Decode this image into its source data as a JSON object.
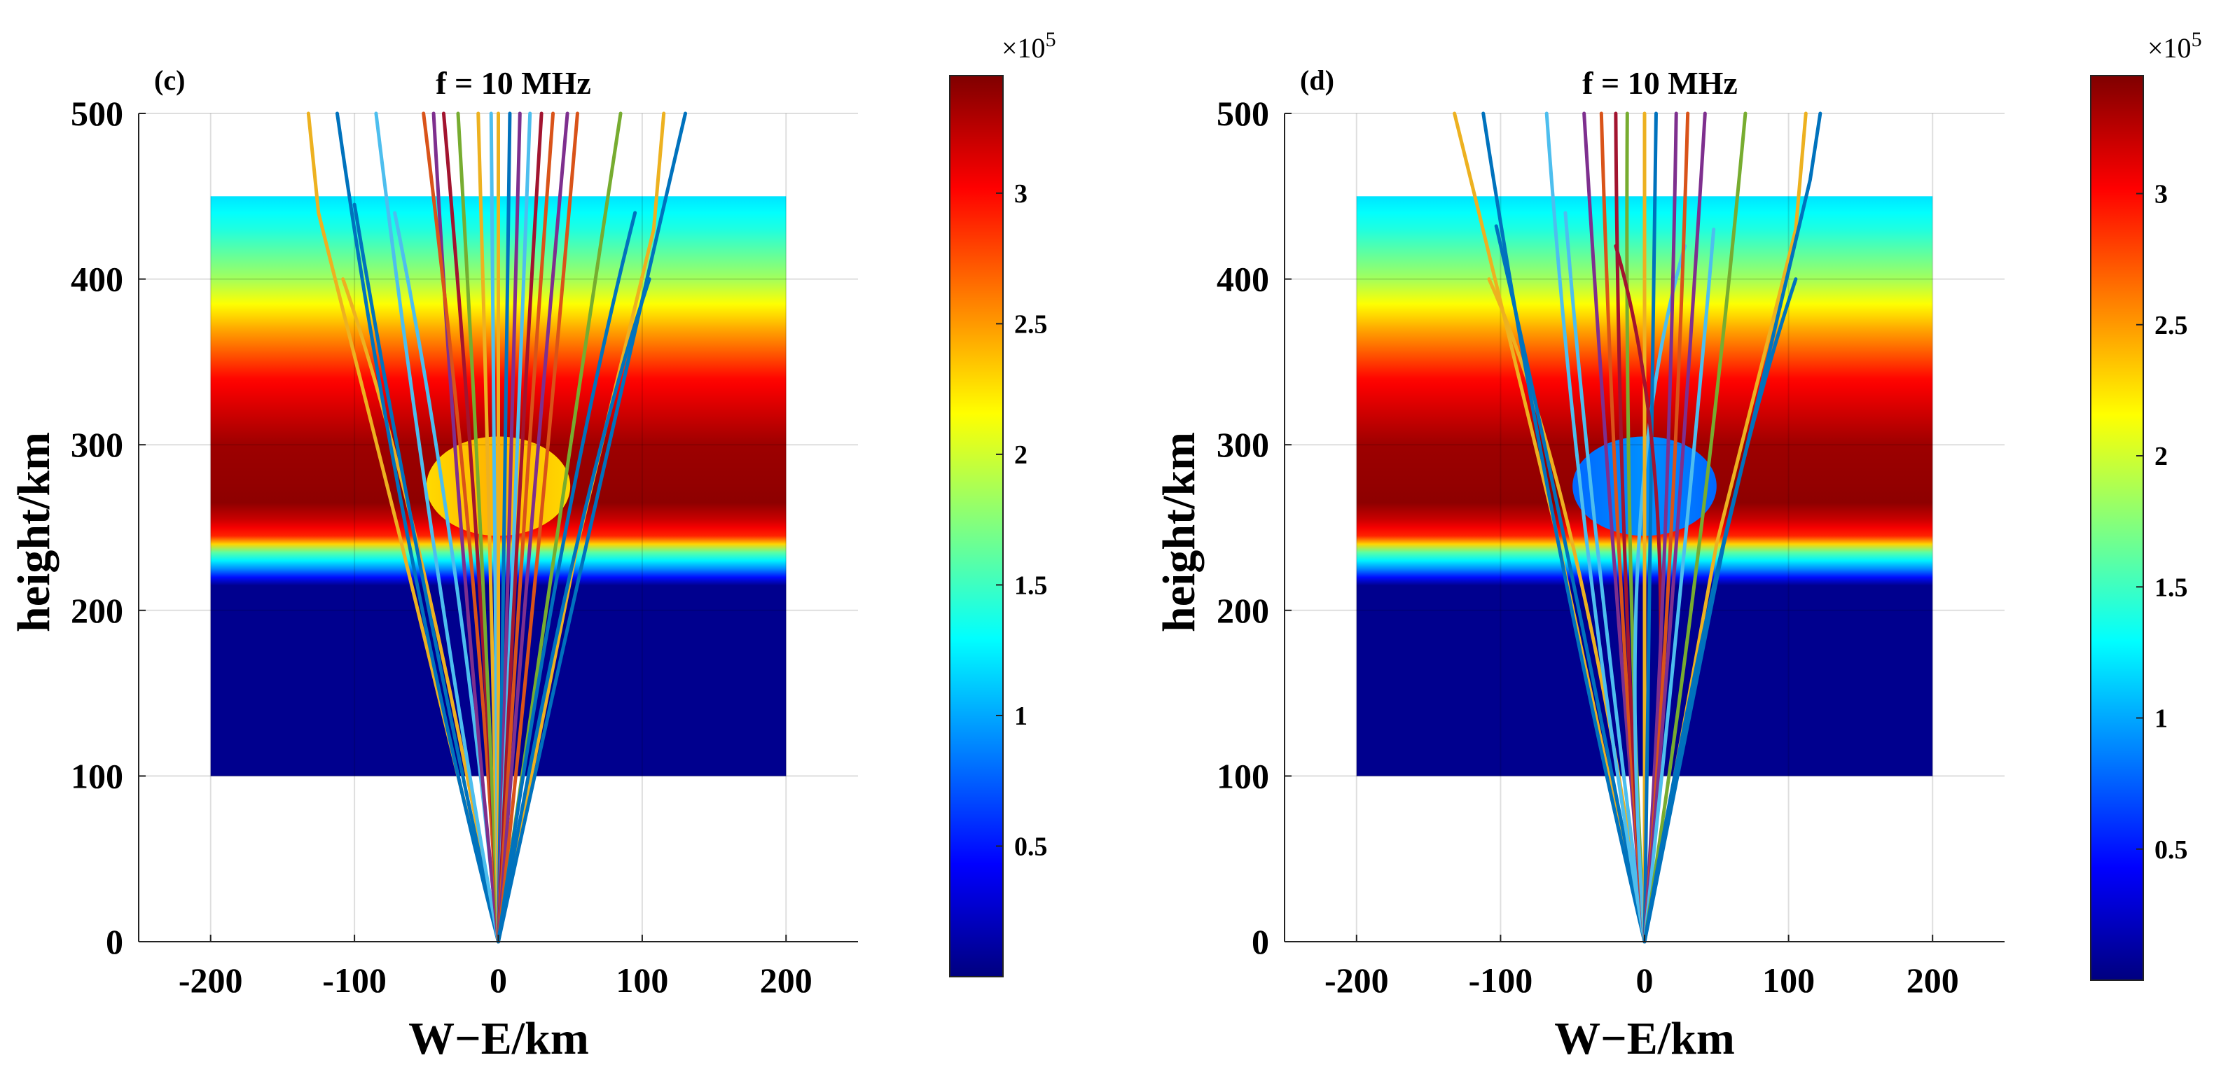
{
  "colormap": "jet",
  "chart_data": [
    {
      "type": "heatmap",
      "panel_label": "(c)",
      "title": "f = 10 MHz",
      "xlabel": "W−E/km",
      "ylabel": "height/km",
      "xlim": [
        -250,
        250
      ],
      "ylim": [
        0,
        500
      ],
      "xticks": [
        -200,
        -100,
        0,
        100,
        200
      ],
      "yticks": [
        0,
        100,
        200,
        300,
        400,
        500
      ],
      "xtick_labels": [
        "-200",
        "-100",
        "0",
        "100",
        "200"
      ],
      "ytick_labels": [
        "0",
        "100",
        "200",
        "300",
        "400",
        "500"
      ],
      "grid": true,
      "colorbar": {
        "clim": [
          0,
          345000
        ],
        "ticks": [
          50000,
          100000,
          150000,
          200000,
          250000,
          300000
        ],
        "tick_labels": [
          "0.5",
          "1",
          "1.5",
          "2",
          "2.5",
          "3"
        ],
        "exponent_label": "×10",
        "exponent_power": "5"
      },
      "density_field": {
        "x_range": [
          -200,
          200
        ],
        "height_range": [
          100,
          450
        ],
        "profile": [
          [
            100,
            5000
          ],
          [
            215,
            5000
          ],
          [
            225,
            90000
          ],
          [
            235,
            160000
          ],
          [
            240,
            230000
          ],
          [
            245,
            290000
          ],
          [
            255,
            320000
          ],
          [
            265,
            340000
          ],
          [
            300,
            335000
          ],
          [
            340,
            300000
          ],
          [
            370,
            245000
          ],
          [
            400,
            185000
          ],
          [
            430,
            140000
          ],
          [
            450,
            120000
          ]
        ]
      },
      "irregularity": {
        "center_x": 0,
        "center_height": 275,
        "semi_axis_x": 50,
        "semi_axis_height": 30,
        "density": 235000
      },
      "rays": [
        {
          "color": "#EDB120",
          "points": [
            [
              0,
              0
            ],
            [
              -55,
              235
            ],
            [
              -108,
              400
            ]
          ]
        },
        {
          "color": "#EDB120",
          "points": [
            [
              0,
              0
            ],
            [
              -70,
              250
            ],
            [
              -125,
              440
            ],
            [
              -132,
              500
            ]
          ]
        },
        {
          "color": "#0072BD",
          "points": [
            [
              0,
              0
            ],
            [
              -55,
              230
            ],
            [
              -100,
              445
            ]
          ]
        },
        {
          "color": "#0072BD",
          "points": [
            [
              0,
              0
            ],
            [
              -62,
              240
            ],
            [
              -112,
              500
            ]
          ]
        },
        {
          "color": "#4DBEEE",
          "points": [
            [
              0,
              0
            ],
            [
              -45,
              240
            ],
            [
              -85,
              500
            ]
          ]
        },
        {
          "color": "#4DBEEE",
          "points": [
            [
              0,
              0
            ],
            [
              -33,
              240
            ],
            [
              -72,
              440
            ]
          ]
        },
        {
          "color": "#7E2F8E",
          "points": [
            [
              0,
              0
            ],
            [
              -25,
              240
            ],
            [
              -45,
              500
            ]
          ]
        },
        {
          "color": "#D95319",
          "points": [
            [
              0,
              0
            ],
            [
              -20,
              240
            ],
            [
              -52,
              500
            ]
          ]
        },
        {
          "color": "#A2142F",
          "points": [
            [
              0,
              0
            ],
            [
              -15,
              240
            ],
            [
              -38,
              500
            ]
          ]
        },
        {
          "color": "#77AC30",
          "points": [
            [
              0,
              0
            ],
            [
              -12,
              240
            ],
            [
              -28,
              500
            ]
          ]
        },
        {
          "color": "#EDB120",
          "points": [
            [
              0,
              0
            ],
            [
              -6,
              240
            ],
            [
              -14,
              500
            ]
          ]
        },
        {
          "color": "#4DBEEE",
          "points": [
            [
              0,
              0
            ],
            [
              -2,
              240
            ],
            [
              -5,
              500
            ]
          ]
        },
        {
          "color": "#EDB120",
          "points": [
            [
              0,
              0
            ],
            [
              0,
              240
            ],
            [
              0,
              500
            ]
          ]
        },
        {
          "color": "#0072BD",
          "points": [
            [
              0,
              0
            ],
            [
              4,
              240
            ],
            [
              8,
              500
            ]
          ]
        },
        {
          "color": "#7E2F8E",
          "points": [
            [
              0,
              0
            ],
            [
              7,
              240
            ],
            [
              15,
              500
            ]
          ]
        },
        {
          "color": "#4DBEEE",
          "points": [
            [
              0,
              0
            ],
            [
              10,
              240
            ],
            [
              22,
              500
            ]
          ]
        },
        {
          "color": "#A2142F",
          "points": [
            [
              0,
              0
            ],
            [
              13,
              240
            ],
            [
              30,
              500
            ]
          ]
        },
        {
          "color": "#D95319",
          "points": [
            [
              0,
              0
            ],
            [
              17,
              240
            ],
            [
              38,
              500
            ]
          ]
        },
        {
          "color": "#7E2F8E",
          "points": [
            [
              0,
              0
            ],
            [
              22,
              240
            ],
            [
              48,
              500
            ]
          ]
        },
        {
          "color": "#D95319",
          "points": [
            [
              0,
              0
            ],
            [
              28,
              240
            ],
            [
              55,
              500
            ]
          ]
        },
        {
          "color": "#77AC30",
          "points": [
            [
              0,
              0
            ],
            [
              40,
              240
            ],
            [
              85,
              500
            ]
          ]
        },
        {
          "color": "#0072BD",
          "points": [
            [
              0,
              0
            ],
            [
              45,
              240
            ],
            [
              95,
              440
            ]
          ]
        },
        {
          "color": "#EDB120",
          "points": [
            [
              0,
              0
            ],
            [
              55,
              240
            ],
            [
              108,
              430
            ],
            [
              115,
              500
            ]
          ]
        },
        {
          "color": "#0072BD",
          "points": [
            [
              0,
              0
            ],
            [
              60,
              235
            ],
            [
              130,
              500
            ]
          ]
        },
        {
          "color": "#0072BD",
          "points": [
            [
              0,
              0
            ],
            [
              52,
              230
            ],
            [
              105,
              400
            ]
          ]
        }
      ]
    },
    {
      "type": "heatmap",
      "panel_label": "(d)",
      "title": "f = 10 MHz",
      "xlabel": "W−E/km",
      "ylabel": "height/km",
      "xlim": [
        -250,
        250
      ],
      "ylim": [
        0,
        500
      ],
      "xticks": [
        -200,
        -100,
        0,
        100,
        200
      ],
      "yticks": [
        0,
        100,
        200,
        300,
        400,
        500
      ],
      "xtick_labels": [
        "-200",
        "-100",
        "0",
        "100",
        "200"
      ],
      "ytick_labels": [
        "0",
        "100",
        "200",
        "300",
        "400",
        "500"
      ],
      "grid": true,
      "colorbar": {
        "clim": [
          0,
          345000
        ],
        "ticks": [
          50000,
          100000,
          150000,
          200000,
          250000,
          300000
        ],
        "tick_labels": [
          "0.5",
          "1",
          "1.5",
          "2",
          "2.5",
          "3"
        ],
        "exponent_label": "×10",
        "exponent_power": "5"
      },
      "density_field": {
        "x_range": [
          -200,
          200
        ],
        "height_range": [
          100,
          450
        ],
        "profile": [
          [
            100,
            5000
          ],
          [
            215,
            5000
          ],
          [
            225,
            90000
          ],
          [
            235,
            160000
          ],
          [
            240,
            230000
          ],
          [
            245,
            290000
          ],
          [
            255,
            320000
          ],
          [
            265,
            340000
          ],
          [
            300,
            335000
          ],
          [
            340,
            300000
          ],
          [
            370,
            245000
          ],
          [
            400,
            185000
          ],
          [
            430,
            140000
          ],
          [
            450,
            120000
          ]
        ]
      },
      "irregularity": {
        "center_x": 0,
        "center_height": 275,
        "semi_axis_x": 50,
        "semi_axis_height": 30,
        "density": 85000
      },
      "rays": [
        {
          "color": "#EDB120",
          "points": [
            [
              0,
              0
            ],
            [
              -50,
              240
            ],
            [
              -108,
              400
            ]
          ]
        },
        {
          "color": "#EDB120",
          "points": [
            [
              0,
              0
            ],
            [
              -62,
              250
            ],
            [
              -115,
              440
            ],
            [
              -132,
              500
            ]
          ]
        },
        {
          "color": "#0072BD",
          "points": [
            [
              0,
              0
            ],
            [
              -55,
              240
            ],
            [
              -103,
              432
            ]
          ]
        },
        {
          "color": "#0072BD",
          "points": [
            [
              0,
              0
            ],
            [
              -62,
              250
            ],
            [
              -112,
              500
            ]
          ]
        },
        {
          "color": "#4DBEEE",
          "points": [
            [
              0,
              0
            ],
            [
              -40,
              240
            ],
            [
              -68,
              500
            ]
          ]
        },
        {
          "color": "#4DBEEE",
          "points": [
            [
              0,
              0
            ],
            [
              -33,
              240
            ],
            [
              -55,
              440
            ]
          ]
        },
        {
          "color": "#7E2F8E",
          "points": [
            [
              0,
              0
            ],
            [
              -22,
              240
            ],
            [
              -42,
              500
            ]
          ]
        },
        {
          "color": "#D95319",
          "points": [
            [
              0,
              0
            ],
            [
              -18,
              240
            ],
            [
              -30,
              500
            ]
          ]
        },
        {
          "color": "#A2142F",
          "points": [
            [
              0,
              0
            ],
            [
              -14,
              240
            ],
            [
              -20,
              500
            ]
          ]
        },
        {
          "color": "#77AC30",
          "points": [
            [
              0,
              0
            ],
            [
              -10,
              240
            ],
            [
              -12,
              500
            ]
          ]
        },
        {
          "color": "#4DBEEE",
          "points": [
            [
              0,
              0
            ],
            [
              -4,
              240
            ],
            [
              28,
              420
            ]
          ]
        },
        {
          "color": "#EDB120",
          "points": [
            [
              0,
              0
            ],
            [
              0,
              240
            ],
            [
              0,
              500
            ]
          ]
        },
        {
          "color": "#0072BD",
          "points": [
            [
              0,
              0
            ],
            [
              4,
              240
            ],
            [
              8,
              500
            ]
          ]
        },
        {
          "color": "#A2142F",
          "points": [
            [
              0,
              0
            ],
            [
              10,
              240
            ],
            [
              -20,
              420
            ]
          ]
        },
        {
          "color": "#7E2F8E",
          "points": [
            [
              0,
              0
            ],
            [
              14,
              240
            ],
            [
              22,
              500
            ]
          ]
        },
        {
          "color": "#D95319",
          "points": [
            [
              0,
              0
            ],
            [
              18,
              240
            ],
            [
              30,
              500
            ]
          ]
        },
        {
          "color": "#7E2F8E",
          "points": [
            [
              0,
              0
            ],
            [
              22,
              240
            ],
            [
              42,
              500
            ]
          ]
        },
        {
          "color": "#4DBEEE",
          "points": [
            [
              0,
              0
            ],
            [
              28,
              240
            ],
            [
              48,
              430
            ]
          ]
        },
        {
          "color": "#77AC30",
          "points": [
            [
              0,
              0
            ],
            [
              38,
              240
            ],
            [
              70,
              500
            ]
          ]
        },
        {
          "color": "#EDB120",
          "points": [
            [
              0,
              0
            ],
            [
              50,
              240
            ],
            [
              105,
              430
            ],
            [
              112,
              500
            ]
          ]
        },
        {
          "color": "#0072BD",
          "points": [
            [
              0,
              0
            ],
            [
              55,
              240
            ],
            [
              115,
              460
            ],
            [
              122,
              500
            ]
          ]
        },
        {
          "color": "#0072BD",
          "points": [
            [
              0,
              0
            ],
            [
              52,
              230
            ],
            [
              105,
              400
            ]
          ]
        }
      ]
    }
  ]
}
